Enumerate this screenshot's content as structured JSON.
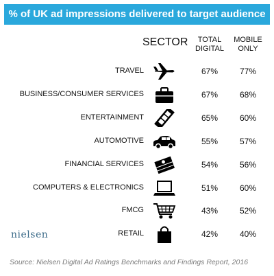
{
  "header": {
    "title": "% of UK ad impressions delivered to target audience"
  },
  "table": {
    "columns": [
      [
        "SECTOR"
      ],
      [
        "TOTAL",
        "DIGITAL"
      ],
      [
        "MOBILE",
        "ONLY"
      ]
    ],
    "rows": [
      [
        "TRAVEL",
        "67%",
        "77%"
      ],
      [
        "BUSINESS/CONSUMER SERVICES",
        "67%",
        "68%"
      ],
      [
        "ENTERTAINMENT",
        "65%",
        "60%"
      ],
      [
        "AUTOMOTIVE",
        "55%",
        "57%"
      ],
      [
        "FINANCIAL SERVICES",
        "54%",
        "56%"
      ],
      [
        "COMPUTERS & ELECTRONICS",
        "51%",
        "60%"
      ],
      [
        "FMCG",
        "43%",
        "52%"
      ],
      [
        "RETAIL",
        "42%",
        "40%"
      ]
    ]
  },
  "logo": "nielsen",
  "source": "Source: Nielsen Digital Ad Ratings Benchmarks and Findings Report, 2016"
}
